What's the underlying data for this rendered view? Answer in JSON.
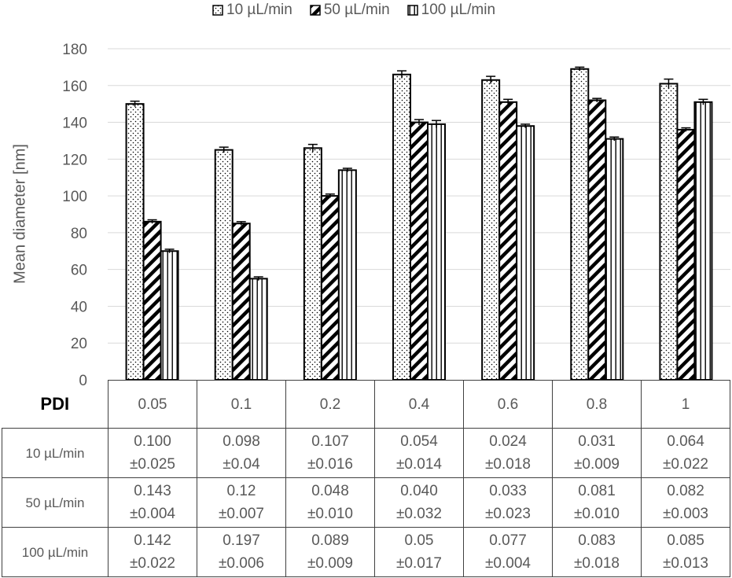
{
  "legend": [
    {
      "label": "10 µL/min",
      "pattern": "dots"
    },
    {
      "label": "50 µL/min",
      "pattern": "diagonal"
    },
    {
      "label": "100 µL/min",
      "pattern": "vertical"
    }
  ],
  "chart_data": {
    "type": "bar",
    "ylabel": "Mean diameter [nm]",
    "ylim": [
      0,
      180
    ],
    "yticks": [
      0,
      20,
      40,
      60,
      80,
      100,
      120,
      140,
      160,
      180
    ],
    "grid": true,
    "legend_position": "top",
    "categories": [
      "0.05",
      "0.1",
      "0.2",
      "0.4",
      "0.6",
      "0.8",
      "1"
    ],
    "series": [
      {
        "name": "10 µL/min",
        "values": [
          150,
          125,
          126,
          166,
          163,
          169,
          161
        ],
        "errors": [
          1.5,
          1.5,
          2,
          2,
          2,
          1,
          2.5
        ]
      },
      {
        "name": "50 µL/min",
        "values": [
          86,
          85,
          100,
          140,
          151,
          152,
          136
        ],
        "errors": [
          1,
          1,
          1,
          1.5,
          1.5,
          1,
          1
        ]
      },
      {
        "name": "100 µL/min",
        "values": [
          70,
          55,
          114,
          139,
          138,
          131,
          151
        ],
        "errors": [
          1,
          1,
          1,
          2,
          1,
          1,
          1.5
        ]
      }
    ]
  },
  "table": {
    "header_label": "PDI",
    "columns": [
      "0.05",
      "0.1",
      "0.2",
      "0.4",
      "0.6",
      "0.8",
      "1"
    ],
    "rows": [
      {
        "label": "10 µL/min",
        "cells": [
          [
            "0.100",
            "±0.025"
          ],
          [
            "0.098",
            "±0.04"
          ],
          [
            "0.107",
            "±0.016"
          ],
          [
            "0.054",
            "±0.014"
          ],
          [
            "0.024",
            "±0.018"
          ],
          [
            "0.031",
            "±0.009"
          ],
          [
            "0.064",
            "±0.022"
          ]
        ]
      },
      {
        "label": "50 µL/min",
        "cells": [
          [
            "0.143",
            "±0.004"
          ],
          [
            "0.12",
            "±0.007"
          ],
          [
            "0.048",
            "±0.010"
          ],
          [
            "0.040",
            "±0.032"
          ],
          [
            "0.033",
            "±0.023"
          ],
          [
            "0.081",
            "±0.010"
          ],
          [
            "0.082",
            "±0.003"
          ]
        ]
      },
      {
        "label": "100 µL/min",
        "cells": [
          [
            "0.142",
            "±0.022"
          ],
          [
            "0.197",
            "±0.006"
          ],
          [
            "0.089",
            "±0.009"
          ],
          [
            "0.05",
            "±0.017"
          ],
          [
            "0.077",
            "±0.004"
          ],
          [
            "0.083",
            "±0.018"
          ],
          [
            "0.085",
            "±0.013"
          ]
        ]
      }
    ]
  }
}
